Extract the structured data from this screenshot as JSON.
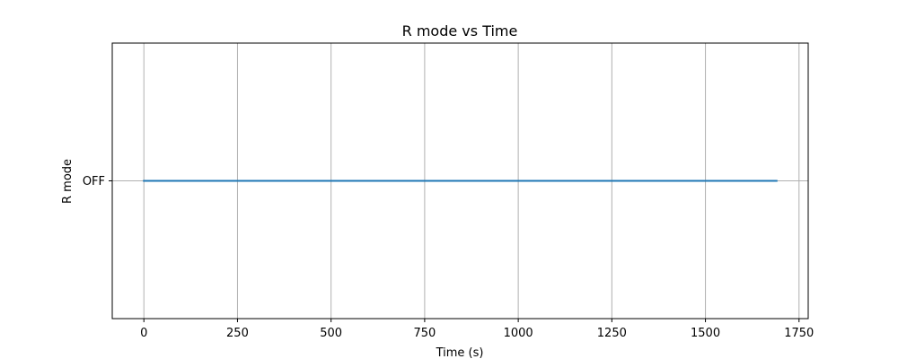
{
  "chart_data": {
    "type": "line",
    "title": "R mode vs Time",
    "xlabel": "Time (s)",
    "ylabel": "R mode",
    "xlim": [
      -84.5,
      1774.5
    ],
    "x_ticks": [
      0,
      250,
      500,
      750,
      1000,
      1250,
      1500,
      1750
    ],
    "x_tick_labels": [
      "0",
      "250",
      "500",
      "750",
      "1000",
      "1250",
      "1500",
      "1750"
    ],
    "y_categories": [
      "OFF"
    ],
    "grid": true,
    "legend": "none",
    "series": [
      {
        "x": [
          0,
          1690
        ],
        "y": [
          "OFF",
          "OFF"
        ],
        "color": "#1f77b4"
      }
    ],
    "colors": {
      "line": "#1f77b4",
      "grid": "#b0b0b0",
      "axes": "#000000"
    }
  }
}
